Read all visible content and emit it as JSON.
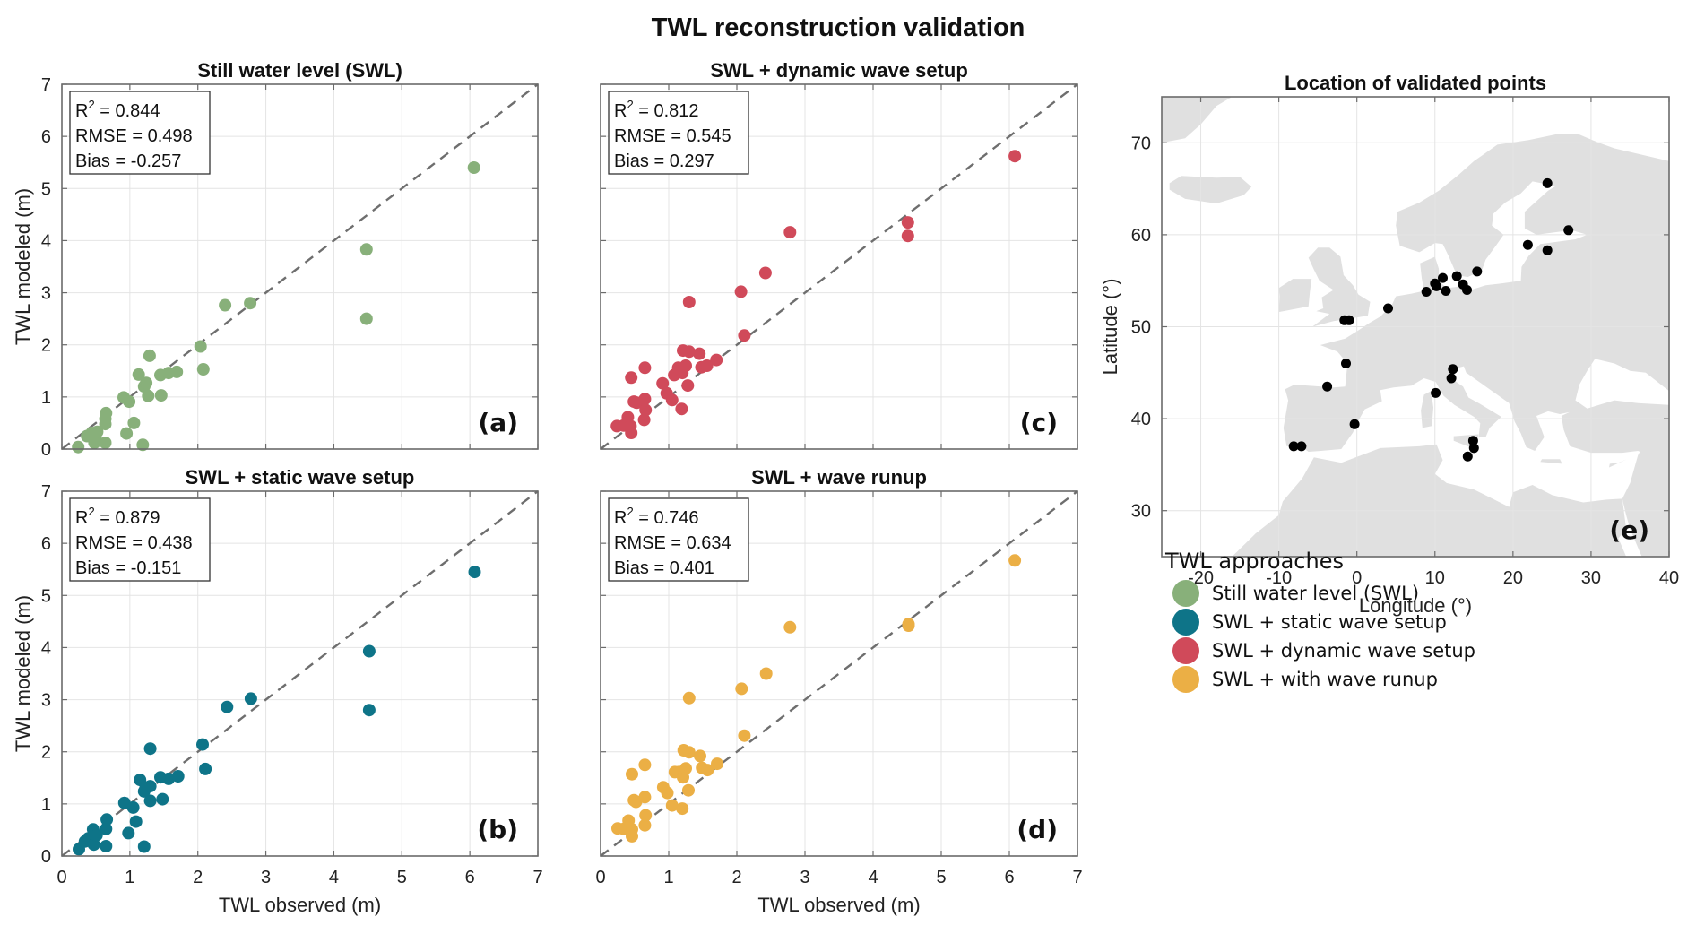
{
  "figure": {
    "title": "TWL reconstruction validation"
  },
  "legend": {
    "title": "TWL approaches",
    "items": [
      {
        "label": "Still water level (SWL)",
        "color": "#88b07a"
      },
      {
        "label": "SWL + static wave setup",
        "color": "#0e7488"
      },
      {
        "label": "SWL + dynamic wave setup",
        "color": "#d04a5a"
      },
      {
        "label": "SWL + with wave runup",
        "color": "#ebaf45"
      }
    ]
  },
  "chart_data": [
    {
      "id": "a",
      "type": "scatter",
      "title": "Still water level (SWL)",
      "panel_label": "(a)",
      "xlabel": "",
      "ylabel": "TWL modeled (m)",
      "xlim": [
        0,
        7
      ],
      "ylim": [
        0,
        7
      ],
      "xticks": [],
      "yticks": [
        "0",
        "1",
        "2",
        "3",
        "4",
        "5",
        "6",
        "7"
      ],
      "grid": true,
      "reference_line": "1:1 dashed",
      "color": "#88b07a",
      "stats": {
        "r2_label": "R",
        "r2_sup": "2",
        "r2": "= 0.844",
        "rmse": "RMSE = 0.498",
        "bias": "Bias = -0.257"
      },
      "points": [
        [
          0.24,
          0.04
        ],
        [
          0.37,
          0.25
        ],
        [
          0.44,
          0.31
        ],
        [
          0.49,
          0.23
        ],
        [
          0.52,
          0.33
        ],
        [
          0.48,
          0.12
        ],
        [
          0.64,
          0.12
        ],
        [
          0.64,
          0.48
        ],
        [
          0.65,
          0.69
        ],
        [
          0.64,
          0.58
        ],
        [
          0.91,
          0.99
        ],
        [
          0.99,
          0.91
        ],
        [
          0.95,
          0.3
        ],
        [
          1.06,
          0.5
        ],
        [
          1.19,
          0.08
        ],
        [
          1.13,
          1.43
        ],
        [
          1.21,
          1.2
        ],
        [
          1.24,
          1.27
        ],
        [
          1.29,
          1.79
        ],
        [
          1.27,
          1.02
        ],
        [
          1.45,
          1.42
        ],
        [
          1.57,
          1.46
        ],
        [
          1.46,
          1.03
        ],
        [
          1.69,
          1.48
        ],
        [
          2.04,
          1.97
        ],
        [
          2.08,
          1.53
        ],
        [
          2.4,
          2.76
        ],
        [
          2.77,
          2.8
        ],
        [
          4.48,
          3.83
        ],
        [
          4.48,
          2.5
        ],
        [
          6.06,
          5.4
        ]
      ]
    },
    {
      "id": "c",
      "type": "scatter",
      "title": "SWL + dynamic wave setup",
      "panel_label": "(c)",
      "xlabel": "",
      "ylabel": "",
      "xlim": [
        0,
        7
      ],
      "ylim": [
        0,
        7
      ],
      "xticks": [],
      "yticks": [],
      "grid": true,
      "reference_line": "1:1 dashed",
      "color": "#d04a5a",
      "stats": {
        "r2_label": "R",
        "r2_sup": "2",
        "r2": "= 0.812",
        "rmse": "RMSE = 0.545",
        "bias": "Bias = 0.297"
      },
      "points": [
        [
          0.24,
          0.44
        ],
        [
          0.34,
          0.45
        ],
        [
          0.4,
          0.61
        ],
        [
          0.44,
          0.44
        ],
        [
          0.45,
          0.31
        ],
        [
          0.45,
          1.37
        ],
        [
          0.49,
          0.91
        ],
        [
          0.53,
          0.89
        ],
        [
          0.64,
          0.56
        ],
        [
          0.66,
          0.75
        ],
        [
          0.65,
          0.96
        ],
        [
          0.65,
          1.56
        ],
        [
          0.91,
          1.26
        ],
        [
          0.97,
          1.07
        ],
        [
          1.05,
          0.94
        ],
        [
          1.08,
          1.42
        ],
        [
          1.14,
          1.56
        ],
        [
          1.19,
          0.77
        ],
        [
          1.2,
          1.46
        ],
        [
          1.21,
          1.89
        ],
        [
          1.25,
          1.6
        ],
        [
          1.3,
          1.87
        ],
        [
          1.28,
          1.22
        ],
        [
          1.3,
          2.82
        ],
        [
          1.45,
          1.83
        ],
        [
          1.48,
          1.57
        ],
        [
          1.56,
          1.6
        ],
        [
          1.7,
          1.71
        ],
        [
          2.06,
          3.02
        ],
        [
          2.11,
          2.18
        ],
        [
          2.42,
          3.38
        ],
        [
          2.78,
          4.16
        ],
        [
          4.51,
          4.35
        ],
        [
          4.51,
          4.09
        ],
        [
          6.08,
          5.62
        ]
      ]
    },
    {
      "id": "b",
      "type": "scatter",
      "title": "SWL + static wave setup",
      "panel_label": "(b)",
      "xlabel": "TWL observed (m)",
      "ylabel": "TWL modeled (m)",
      "xlim": [
        0,
        7
      ],
      "ylim": [
        0,
        7
      ],
      "xticks": [
        "0",
        "1",
        "2",
        "3",
        "4",
        "5",
        "6",
        "7"
      ],
      "yticks": [
        "0",
        "1",
        "2",
        "3",
        "4",
        "5",
        "6",
        "7"
      ],
      "grid": true,
      "reference_line": "1:1 dashed",
      "color": "#0e7488",
      "stats": {
        "r2_label": "R",
        "r2_sup": "2",
        "r2": "= 0.879",
        "rmse": "RMSE = 0.438",
        "bias": "Bias = -0.151"
      },
      "points": [
        [
          0.25,
          0.13
        ],
        [
          0.34,
          0.28
        ],
        [
          0.39,
          0.34
        ],
        [
          0.46,
          0.51
        ],
        [
          0.44,
          0.35
        ],
        [
          0.47,
          0.22
        ],
        [
          0.51,
          0.4
        ],
        [
          0.65,
          0.19
        ],
        [
          0.65,
          0.52
        ],
        [
          0.66,
          0.7
        ],
        [
          0.92,
          1.02
        ],
        [
          1.05,
          0.93
        ],
        [
          0.98,
          0.44
        ],
        [
          1.09,
          0.66
        ],
        [
          1.21,
          0.18
        ],
        [
          1.15,
          1.46
        ],
        [
          1.21,
          1.24
        ],
        [
          1.23,
          1.3
        ],
        [
          1.3,
          1.34
        ],
        [
          1.3,
          2.06
        ],
        [
          1.3,
          1.06
        ],
        [
          1.45,
          1.51
        ],
        [
          1.57,
          1.48
        ],
        [
          1.48,
          1.09
        ],
        [
          1.71,
          1.53
        ],
        [
          2.07,
          2.14
        ],
        [
          2.11,
          1.67
        ],
        [
          2.43,
          2.86
        ],
        [
          2.78,
          3.02
        ],
        [
          4.52,
          2.8
        ],
        [
          4.52,
          3.93
        ],
        [
          6.07,
          5.45
        ]
      ]
    },
    {
      "id": "d",
      "type": "scatter",
      "title": "SWL + wave runup",
      "panel_label": "(d)",
      "xlabel": "TWL observed (m)",
      "ylabel": "",
      "xlim": [
        0,
        7
      ],
      "ylim": [
        0,
        7
      ],
      "xticks": [
        "0",
        "1",
        "2",
        "3",
        "4",
        "5",
        "6",
        "7"
      ],
      "yticks": [],
      "grid": true,
      "reference_line": "1:1 dashed",
      "color": "#ebaf45",
      "stats": {
        "r2_label": "R",
        "r2_sup": "2",
        "r2": "= 0.746",
        "rmse": "RMSE = 0.634",
        "bias": "Bias = 0.401"
      },
      "points": [
        [
          0.25,
          0.53
        ],
        [
          0.34,
          0.52
        ],
        [
          0.41,
          0.68
        ],
        [
          0.46,
          0.51
        ],
        [
          0.46,
          0.38
        ],
        [
          0.46,
          1.57
        ],
        [
          0.49,
          1.07
        ],
        [
          0.52,
          1.04
        ],
        [
          0.65,
          1.13
        ],
        [
          0.66,
          0.78
        ],
        [
          0.65,
          0.59
        ],
        [
          0.65,
          1.75
        ],
        [
          0.92,
          1.32
        ],
        [
          0.98,
          1.21
        ],
        [
          1.05,
          0.97
        ],
        [
          1.2,
          0.91
        ],
        [
          1.09,
          1.61
        ],
        [
          1.15,
          1.61
        ],
        [
          1.21,
          1.51
        ],
        [
          1.25,
          1.68
        ],
        [
          1.22,
          2.03
        ],
        [
          1.3,
          1.99
        ],
        [
          1.29,
          1.26
        ],
        [
          1.3,
          3.03
        ],
        [
          1.46,
          1.92
        ],
        [
          1.49,
          1.69
        ],
        [
          1.57,
          1.65
        ],
        [
          1.71,
          1.77
        ],
        [
          2.11,
          2.31
        ],
        [
          2.07,
          3.21
        ],
        [
          2.43,
          3.5
        ],
        [
          2.78,
          4.39
        ],
        [
          4.52,
          4.42
        ],
        [
          4.52,
          4.45
        ],
        [
          6.08,
          5.67
        ]
      ]
    },
    {
      "id": "e",
      "type": "scatter",
      "title": "Location of validated points",
      "panel_label": "(e)",
      "xlabel": "Longitude (°)",
      "ylabel": "Latitude (°)",
      "xlim": [
        -25,
        40
      ],
      "ylim": [
        25,
        75
      ],
      "xticks": [
        "-20",
        "-10",
        "0",
        "10",
        "20",
        "30",
        "40"
      ],
      "yticks": [
        "30",
        "40",
        "50",
        "60",
        "70"
      ],
      "grid": true,
      "color": "#000000",
      "land_color": "#e0e0e0",
      "points": [
        [
          -8.1,
          37.0
        ],
        [
          -7.1,
          37.0
        ],
        [
          -3.8,
          43.5
        ],
        [
          -1.6,
          50.7
        ],
        [
          -1.0,
          50.7
        ],
        [
          -1.4,
          46.0
        ],
        [
          -0.3,
          39.4
        ],
        [
          4.0,
          52.0
        ],
        [
          8.9,
          53.8
        ],
        [
          10.0,
          54.7
        ],
        [
          10.2,
          54.4
        ],
        [
          11.0,
          55.3
        ],
        [
          11.4,
          53.9
        ],
        [
          12.8,
          55.5
        ],
        [
          13.6,
          54.6
        ],
        [
          14.1,
          54.0
        ],
        [
          15.4,
          56.0
        ],
        [
          10.1,
          42.8
        ],
        [
          12.3,
          45.4
        ],
        [
          12.1,
          44.4
        ],
        [
          14.9,
          37.6
        ],
        [
          15.0,
          36.8
        ],
        [
          14.2,
          35.9
        ],
        [
          21.9,
          58.9
        ],
        [
          24.4,
          58.3
        ],
        [
          24.4,
          65.6
        ],
        [
          27.1,
          60.5
        ]
      ]
    }
  ]
}
